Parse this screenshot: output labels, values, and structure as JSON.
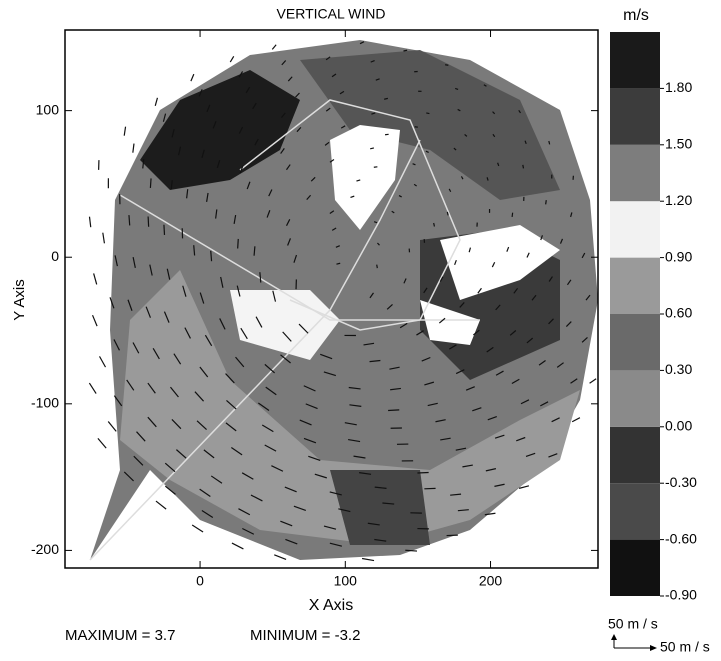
{
  "chart_data": {
    "type": "contour",
    "title": "VERTICAL WIND",
    "xlabel": "X Axis",
    "ylabel": "Y Axis",
    "xlim": [
      -93,
      274
    ],
    "ylim": [
      -212,
      155
    ],
    "xticks": [
      0,
      100,
      200
    ],
    "yticks": [
      -200,
      -100,
      0,
      100
    ],
    "colorbar": {
      "title": "m/s",
      "lim": [
        -0.9,
        2.1
      ],
      "ticks": [
        {
          "value": -0.9,
          "label": "-0.90"
        },
        {
          "value": -0.6,
          "label": "-0.60"
        },
        {
          "value": -0.3,
          "label": "-0.30"
        },
        {
          "value": 0.0,
          "label": "0.00"
        },
        {
          "value": 0.3,
          "label": "0.30"
        },
        {
          "value": 0.6,
          "label": "0.60"
        },
        {
          "value": 0.9,
          "label": "0.90"
        },
        {
          "value": 1.2,
          "label": "1.20"
        },
        {
          "value": 1.5,
          "label": "1.50"
        },
        {
          "value": 1.8,
          "label": "1.80"
        }
      ],
      "colors": [
        "#111111",
        "#4a4a4a",
        "#333333",
        "#8a8a8a",
        "#6a6a6a",
        "#9a9a9a",
        "#f2f2f2",
        "#7d7d7d",
        "#3c3c3c",
        "#1a1a1a"
      ]
    },
    "reference_vectors": {
      "vertical_label": "50 m / s",
      "horizontal_label": "50 m / s"
    },
    "annotations": [
      "MAXIMUM = 3.7",
      "MINIMUM = -3.2"
    ]
  }
}
